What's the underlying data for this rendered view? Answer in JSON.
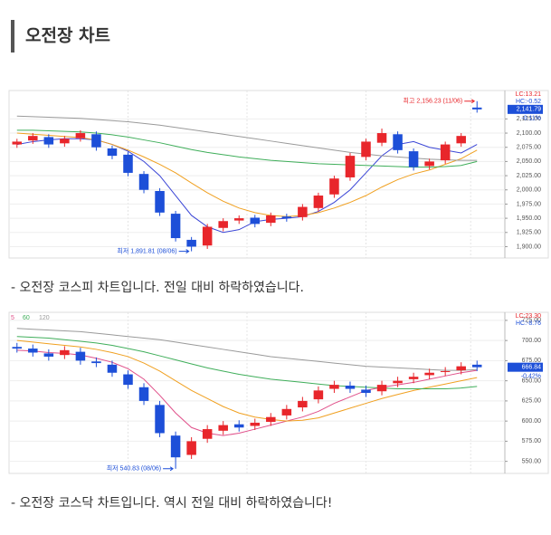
{
  "header": {
    "title": "오전장 차트"
  },
  "captions": [
    "- 오전장 코스피 차트입니다. 전일 대비 하락하였습니다.",
    "- 오전장 코스닥  차트입니다. 역시 전일 대비 하락하였습니다!"
  ],
  "chart_data": [
    {
      "type": "candlestick",
      "grid": true,
      "up_color": "#e8262b",
      "down_color": "#1d4fd8",
      "open": [
        2080,
        2087,
        2093,
        2082,
        2091,
        2098,
        2073,
        2062,
        2028,
        1998,
        1958,
        1912,
        1902,
        1933,
        1946,
        1951,
        1942,
        1953,
        1952,
        1968,
        1992,
        2022,
        2058,
        2083,
        2098,
        2068,
        2042,
        2052,
        2082,
        2145
      ],
      "high": [
        2090,
        2100,
        2098,
        2095,
        2105,
        2103,
        2078,
        2067,
        2033,
        2003,
        1963,
        1917,
        1940,
        1950,
        1955,
        1956,
        1960,
        1958,
        1975,
        1995,
        2025,
        2065,
        2090,
        2108,
        2103,
        2073,
        2055,
        2085,
        2100,
        2156.23
      ],
      "low": [
        2074,
        2081,
        2074,
        2076,
        2085,
        2069,
        2054,
        2024,
        1994,
        1954,
        1909,
        1891.81,
        1896,
        1927,
        1940,
        1934,
        1936,
        1944,
        1946,
        1962,
        1986,
        2016,
        2052,
        2077,
        2064,
        2034,
        2036,
        2046,
        2076,
        2136
      ],
      "close": [
        2085,
        2095,
        2080,
        2090,
        2100,
        2075,
        2060,
        2030,
        2000,
        1960,
        1915,
        1900,
        1935,
        1945,
        1950,
        1940,
        1955,
        1950,
        1970,
        1990,
        2020,
        2060,
        2085,
        2100,
        2070,
        2040,
        2050,
        2080,
        2095,
        2141.79
      ],
      "series": [
        {
          "color": "#3a45d6",
          "values": [
            2080,
            2085,
            2088,
            2090,
            2090,
            2088,
            2080,
            2068,
            2050,
            2025,
            1990,
            1955,
            1935,
            1925,
            1930,
            1944,
            1948,
            1950,
            1953,
            1962,
            1978,
            2000,
            2030,
            2060,
            2080,
            2085,
            2075,
            2070,
            2065,
            2080
          ]
        },
        {
          "color": "#f0a020",
          "values": [
            2100,
            2098,
            2096,
            2094,
            2092,
            2088,
            2080,
            2070,
            2058,
            2045,
            2030,
            2012,
            1995,
            1980,
            1968,
            1960,
            1955,
            1953,
            1955,
            1960,
            1968,
            1978,
            1990,
            2005,
            2018,
            2028,
            2035,
            2045,
            2055,
            2070
          ]
        },
        {
          "color": "#3fae5a",
          "values": [
            2105,
            2105,
            2104,
            2103,
            2102,
            2100,
            2097,
            2093,
            2088,
            2083,
            2077,
            2071,
            2066,
            2062,
            2058,
            2055,
            2052,
            2050,
            2048,
            2046,
            2045,
            2044,
            2043,
            2042,
            2041,
            2040,
            2040,
            2041,
            2043,
            2050
          ]
        },
        {
          "color": "#9a9a9a",
          "values": [
            2130,
            2129,
            2128,
            2127,
            2126,
            2124,
            2122,
            2120,
            2117,
            2114,
            2110,
            2106,
            2102,
            2098,
            2094,
            2090,
            2086,
            2082,
            2078,
            2074,
            2070,
            2066,
            2063,
            2060,
            2058,
            2056,
            2054,
            2053,
            2052,
            2052
          ]
        }
      ],
      "ylim": [
        1880,
        2175
      ],
      "yticks": [
        {
          "value": 1900,
          "label": "1,900.00"
        },
        {
          "value": 1925,
          "label": "1,925.00"
        },
        {
          "value": 1950,
          "label": "1,950.00"
        },
        {
          "value": 1975,
          "label": "1,975.00"
        },
        {
          "value": 2000,
          "label": "2,000.00"
        },
        {
          "value": 2025,
          "label": "2,025.00"
        },
        {
          "value": 2050,
          "label": "2,050.00"
        },
        {
          "value": 2075,
          "label": "2,075.00"
        },
        {
          "value": 2100,
          "label": "2,100.00"
        },
        {
          "value": 2125,
          "label": "2,125.00"
        }
      ],
      "high_label": "최고 2,156.23 (11/06)",
      "low_label": "최저 1,891.81 (08/06)",
      "lc": "LC:13.21",
      "hc": "HC:-0.52",
      "last_label": "2,141.79",
      "change": "-0.11%"
    },
    {
      "type": "candlestick",
      "grid": true,
      "up_color": "#e8262b",
      "down_color": "#1d4fd8",
      "open": [
        692,
        690,
        684,
        682,
        686,
        674,
        670,
        658,
        642,
        620,
        582,
        558,
        578,
        588,
        596,
        594,
        599,
        607,
        617,
        627,
        640,
        644,
        639,
        637,
        647,
        652,
        657,
        661,
        663,
        670
      ],
      "high": [
        697,
        695,
        689,
        693,
        691,
        679,
        675,
        663,
        647,
        625,
        587,
        580,
        595,
        600,
        601,
        603,
        610,
        620,
        630,
        643,
        650,
        649,
        644,
        650,
        655,
        660,
        665,
        667,
        673,
        675
      ],
      "low": [
        685,
        680,
        675,
        677,
        670,
        667,
        655,
        640,
        620,
        580,
        540.83,
        553,
        573,
        583,
        587,
        589,
        594,
        602,
        612,
        622,
        635,
        635,
        630,
        632,
        642,
        647,
        652,
        656,
        658,
        662
      ],
      "close": [
        690,
        685,
        680,
        688,
        675,
        672,
        660,
        645,
        625,
        585,
        555,
        575,
        590,
        595,
        592,
        598,
        605,
        615,
        625,
        638,
        645,
        640,
        635,
        645,
        650,
        655,
        660,
        662,
        668,
        666.84
      ],
      "series": [
        {
          "name": "5",
          "color": "#e0508a",
          "values": [
            688,
            687,
            685,
            684,
            682,
            678,
            673,
            665,
            652,
            632,
            610,
            592,
            585,
            582,
            585,
            590,
            595,
            600,
            605,
            612,
            622,
            630,
            638,
            642,
            645,
            648,
            652,
            656,
            660,
            663
          ]
        },
        {
          "color": "#f0a020",
          "values": [
            700,
            698,
            696,
            694,
            692,
            689,
            685,
            680,
            672,
            662,
            650,
            638,
            628,
            618,
            610,
            605,
            602,
            600,
            601,
            604,
            610,
            616,
            622,
            628,
            633,
            638,
            642,
            646,
            650,
            654
          ]
        },
        {
          "name": "60",
          "color": "#3fae5a",
          "values": [
            705,
            704,
            703,
            701,
            699,
            697,
            694,
            690,
            686,
            681,
            676,
            671,
            666,
            662,
            658,
            655,
            652,
            650,
            648,
            646,
            644,
            643,
            642,
            641,
            640,
            640,
            640,
            640,
            641,
            643
          ]
        },
        {
          "name": "120",
          "color": "#9a9a9a",
          "values": [
            715,
            714,
            713,
            712,
            711,
            709,
            707,
            705,
            703,
            701,
            698,
            695,
            692,
            689,
            686,
            683,
            680,
            678,
            676,
            674,
            672,
            670,
            668,
            667,
            666,
            665,
            664,
            663,
            663,
            664
          ]
        }
      ],
      "ylim": [
        535,
        735
      ],
      "yticks": [
        {
          "value": 550,
          "label": "550.00"
        },
        {
          "value": 575,
          "label": "575.00"
        },
        {
          "value": 600,
          "label": "600.00"
        },
        {
          "value": 625,
          "label": "625.00"
        },
        {
          "value": 650,
          "label": "650.00"
        },
        {
          "value": 675,
          "label": "675.00"
        },
        {
          "value": 700,
          "label": "700.00"
        },
        {
          "value": 725,
          "label": "725.00"
        }
      ],
      "low_label": "최저 540.83 (08/06)",
      "lc": "LC:23.30",
      "hc": "HC:-8.76",
      "last_label": "666.84",
      "change": "-0.42%"
    }
  ]
}
